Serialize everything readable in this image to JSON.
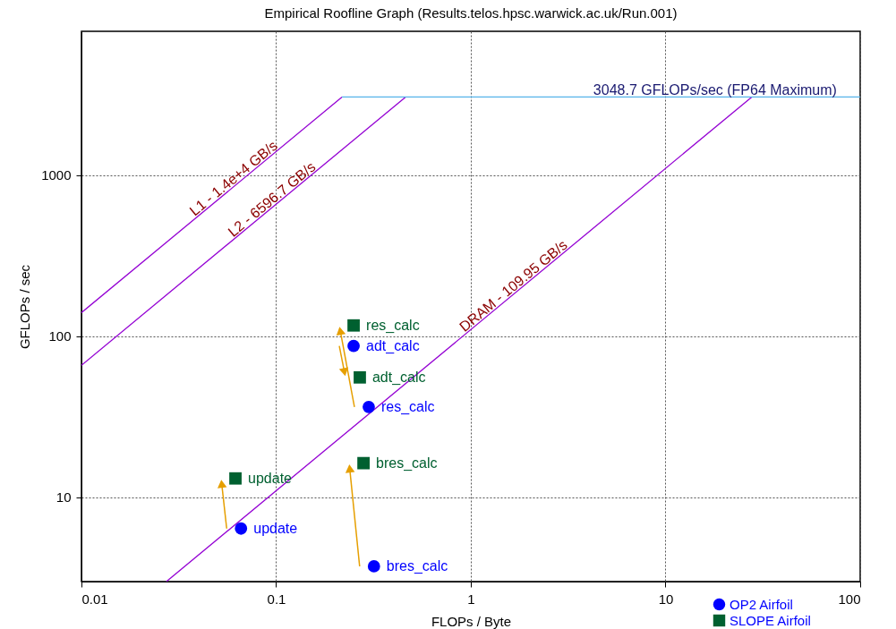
{
  "chart_data": {
    "type": "scatter",
    "title": "Empirical Roofline Graph (Results.telos.hpsc.warwick.ac.uk/Run.001)",
    "xlabel": "FLOPs / Byte",
    "ylabel": "GFLOPs / sec",
    "log": "xy",
    "grid": true,
    "legend": "bottom right",
    "xlim": [
      0.01,
      100
    ],
    "ylim": [
      3,
      7800
    ],
    "xticks": [
      0.01,
      0.1,
      1,
      10,
      100
    ],
    "yticks": [
      10,
      100,
      1000
    ],
    "series": [
      {
        "name": "L1 - 1.4e+4 GB/s",
        "type": "line",
        "color": "#9400d3",
        "x": [
          0.01,
          0.2178
        ],
        "values": [
          140,
          3048.7
        ]
      },
      {
        "name": "L2 - 6596.7 GB/s",
        "type": "line",
        "color": "#9400d3",
        "x": [
          0.01,
          0.4622
        ],
        "values": [
          65.967,
          3048.7
        ]
      },
      {
        "name": "DRAM - 109.95 GB/s",
        "type": "line",
        "color": "#9400d3",
        "x": [
          0.0273,
          27.73
        ],
        "values": [
          3,
          3048.7
        ]
      },
      {
        "name": "3048.7 GFLOPs/sec (FP64 Maximum)",
        "type": "line",
        "color": "#56b4e9",
        "x": [
          0.2178,
          100
        ],
        "values": [
          3048.7,
          3048.7
        ]
      },
      {
        "name": "OP2 Airfoil",
        "marker": "circle",
        "color": "#0000ff",
        "x": [
          0.066,
          0.318,
          0.299,
          0.25
        ],
        "values": [
          6.4,
          3.73,
          36.4,
          86.9
        ],
        "value_labels": [
          "update",
          "bres_calc",
          "res_calc",
          "adt_calc"
        ]
      },
      {
        "name": "SLOPE Airfoil",
        "marker": "square",
        "color": "#006030",
        "x": [
          0.0618,
          0.281,
          0.25,
          0.269
        ],
        "values": [
          13.1,
          16.3,
          116.6,
          55.5
        ],
        "value_labels": [
          "update",
          "bres_calc",
          "res_calc",
          "adt_calc"
        ]
      }
    ]
  }
}
